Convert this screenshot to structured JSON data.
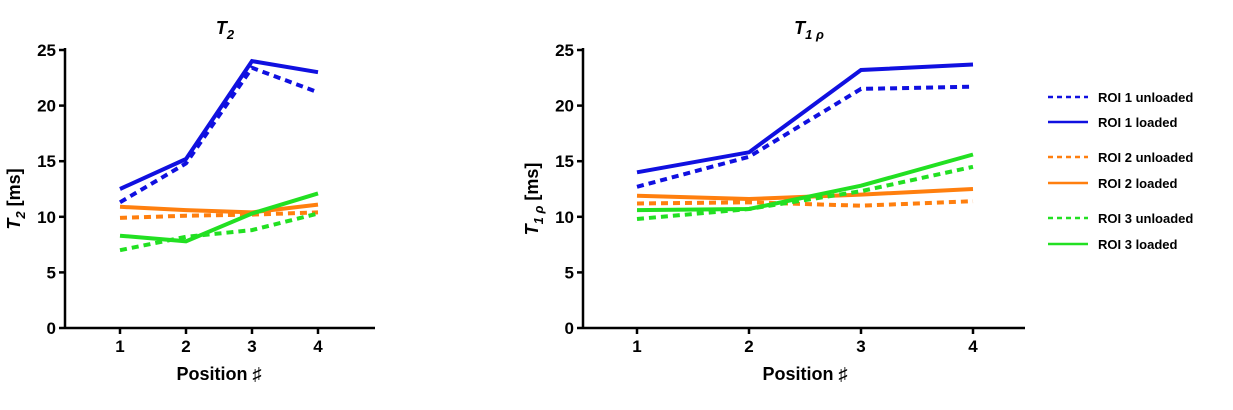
{
  "figure": {
    "legend": [
      {
        "label": "ROI 1 unloaded",
        "color": "#1010e0",
        "dashed": true
      },
      {
        "label": "ROI 1 loaded",
        "color": "#1010e0",
        "dashed": false
      },
      {
        "label": "ROI 2 unloaded",
        "color": "#ff7f0e",
        "dashed": true
      },
      {
        "label": "ROI 2 loaded",
        "color": "#ff7f0e",
        "dashed": false
      },
      {
        "label": "ROI 3 unloaded",
        "color": "#22e022",
        "dashed": true
      },
      {
        "label": "ROI 3 loaded",
        "color": "#22e022",
        "dashed": false
      }
    ]
  },
  "chart_data": [
    {
      "type": "line",
      "title_main": "T",
      "title_sub": "2",
      "xlabel": "Position ♯",
      "ylabel_main": "T",
      "ylabel_sub": "2",
      "ylabel_unit": " [ms]",
      "x": [
        1,
        2,
        3,
        4
      ],
      "ylim": [
        0,
        25
      ],
      "yticks": [
        0,
        5,
        10,
        15,
        20,
        25
      ],
      "series": [
        {
          "name": "ROI 1 unloaded",
          "color": "#1010e0",
          "dashed": true,
          "values": [
            11.3,
            14.8,
            23.4,
            21.2
          ]
        },
        {
          "name": "ROI 1 loaded",
          "color": "#1010e0",
          "dashed": false,
          "values": [
            12.5,
            15.2,
            24.0,
            23.0
          ]
        },
        {
          "name": "ROI 2 unloaded",
          "color": "#ff7f0e",
          "dashed": true,
          "values": [
            9.9,
            10.1,
            10.2,
            10.4
          ]
        },
        {
          "name": "ROI 2 loaded",
          "color": "#ff7f0e",
          "dashed": false,
          "values": [
            10.9,
            10.6,
            10.4,
            11.1
          ]
        },
        {
          "name": "ROI 3 unloaded",
          "color": "#22e022",
          "dashed": true,
          "values": [
            7.0,
            8.2,
            8.8,
            10.3
          ]
        },
        {
          "name": "ROI 3 loaded",
          "color": "#22e022",
          "dashed": false,
          "values": [
            8.3,
            7.8,
            10.3,
            12.1
          ]
        }
      ]
    },
    {
      "type": "line",
      "title_main": "T",
      "title_sub": "1 ρ",
      "xlabel": "Position ♯",
      "ylabel_main": "T",
      "ylabel_sub": "1 ρ",
      "ylabel_unit": " [ms]",
      "x": [
        1,
        2,
        3,
        4
      ],
      "ylim": [
        0,
        25
      ],
      "yticks": [
        0,
        5,
        10,
        15,
        20,
        25
      ],
      "series": [
        {
          "name": "ROI 1 unloaded",
          "color": "#1010e0",
          "dashed": true,
          "values": [
            12.7,
            15.4,
            21.5,
            21.7
          ]
        },
        {
          "name": "ROI 1 loaded",
          "color": "#1010e0",
          "dashed": false,
          "values": [
            14.0,
            15.8,
            23.2,
            23.7
          ]
        },
        {
          "name": "ROI 2 unloaded",
          "color": "#ff7f0e",
          "dashed": true,
          "values": [
            11.2,
            11.3,
            11.0,
            11.4
          ]
        },
        {
          "name": "ROI 2 loaded",
          "color": "#ff7f0e",
          "dashed": false,
          "values": [
            11.9,
            11.6,
            12.0,
            12.5
          ]
        },
        {
          "name": "ROI 3 unloaded",
          "color": "#22e022",
          "dashed": true,
          "values": [
            9.8,
            10.7,
            12.3,
            14.5
          ]
        },
        {
          "name": "ROI 3 loaded",
          "color": "#22e022",
          "dashed": false,
          "values": [
            10.6,
            10.7,
            12.8,
            15.6
          ]
        }
      ]
    }
  ]
}
